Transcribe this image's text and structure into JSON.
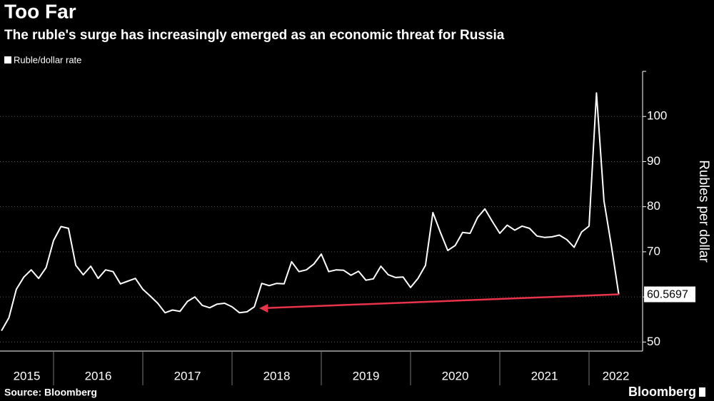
{
  "chart_data": {
    "type": "line",
    "title": "Too Far",
    "subtitle": "The ruble's surge has increasingly emerged as an economic threat for Russia",
    "legend": "Ruble/dollar rate",
    "y_axis_label": "Rubles per dollar",
    "source": "Source: Bloomberg",
    "brand": "Bloomberg",
    "color": "#ffffff",
    "x": [
      2015.417,
      2015.5,
      2015.583,
      2015.667,
      2015.75,
      2015.833,
      2015.917,
      2016.0,
      2016.083,
      2016.167,
      2016.25,
      2016.333,
      2016.417,
      2016.5,
      2016.583,
      2016.667,
      2016.75,
      2016.833,
      2016.917,
      2017.0,
      2017.083,
      2017.167,
      2017.25,
      2017.333,
      2017.417,
      2017.5,
      2017.583,
      2017.667,
      2017.75,
      2017.833,
      2017.917,
      2018.0,
      2018.083,
      2018.167,
      2018.25,
      2018.333,
      2018.417,
      2018.5,
      2018.583,
      2018.667,
      2018.75,
      2018.833,
      2018.917,
      2019.0,
      2019.083,
      2019.167,
      2019.25,
      2019.333,
      2019.417,
      2019.5,
      2019.583,
      2019.667,
      2019.75,
      2019.833,
      2019.917,
      2020.0,
      2020.083,
      2020.167,
      2020.25,
      2020.333,
      2020.417,
      2020.5,
      2020.583,
      2020.667,
      2020.75,
      2020.833,
      2020.917,
      2021.0,
      2021.083,
      2021.167,
      2021.25,
      2021.333,
      2021.417,
      2021.5,
      2021.583,
      2021.667,
      2021.75,
      2021.833,
      2021.917,
      2022.0,
      2022.083,
      2022.167,
      2022.25,
      2022.333
    ],
    "values": [
      52.5,
      55.4,
      61.7,
      64.4,
      66.0,
      64.1,
      66.5,
      72.5,
      75.6,
      75.2,
      67.0,
      64.9,
      66.8,
      64.1,
      66.0,
      65.6,
      62.9,
      63.5,
      64.1,
      61.7,
      60.2,
      58.6,
      56.5,
      57.1,
      56.8,
      59.0,
      60.0,
      58.1,
      57.6,
      58.4,
      58.6,
      57.8,
      56.5,
      56.7,
      57.8,
      63.0,
      62.5,
      63.0,
      62.9,
      67.8,
      65.6,
      66.0,
      67.3,
      69.5,
      65.6,
      66.0,
      65.9,
      64.8,
      65.7,
      63.7,
      64.0,
      66.8,
      64.9,
      64.3,
      64.4,
      62.1,
      64.1,
      67.0,
      78.7,
      74.4,
      70.3,
      71.4,
      74.3,
      74.1,
      77.6,
      79.5,
      76.7,
      74.1,
      75.9,
      74.8,
      75.7,
      75.2,
      73.5,
      73.2,
      73.3,
      73.7,
      72.7,
      71.0,
      74.4,
      75.7,
      105.2,
      81.3,
      71.3,
      60.5697
    ],
    "xlim": [
      2015.4,
      2022.6
    ],
    "xticks": [
      2016,
      2017,
      2018,
      2019,
      2020,
      2021,
      2022
    ],
    "year_labels": [
      "2015",
      "2016",
      "2017",
      "2018",
      "2019",
      "2020",
      "2021",
      "2022"
    ],
    "ylim": [
      48,
      110
    ],
    "yticks": [
      50,
      60,
      70,
      80,
      90,
      100
    ],
    "grid": true
  }
}
